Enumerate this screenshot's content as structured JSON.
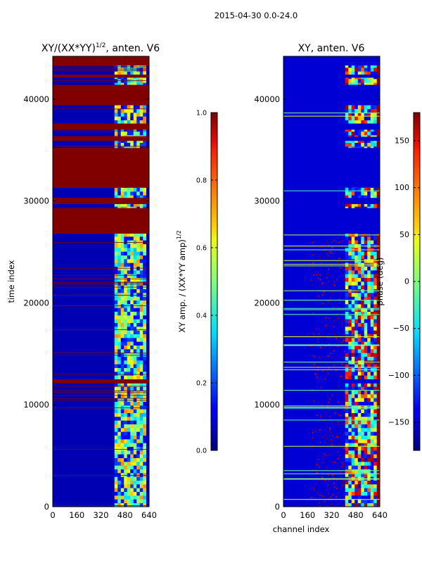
{
  "figure": {
    "suptitle": "2015-04-30 0.0-24.0",
    "shared_xlabel": "channel index"
  },
  "chart_data": [
    {
      "type": "heatmap",
      "title_main": "XY/(XX*YY)",
      "title_exp": "1/2",
      "title_tail": ", anten. V6",
      "xlabel": "",
      "ylabel": "time index",
      "xlim": [
        0,
        640
      ],
      "ylim": [
        0,
        44200
      ],
      "xticks": [
        "0",
        "160",
        "320",
        "480",
        "640"
      ],
      "xtick_values": [
        0,
        160,
        320,
        480,
        640
      ],
      "yticks": [
        "0",
        "10000",
        "20000",
        "30000",
        "40000"
      ],
      "ytick_values": [
        0,
        10000,
        20000,
        30000,
        40000
      ],
      "colormap": "jet",
      "colorbar": {
        "label_main": "XY amp. / (XX*YY amp)",
        "label_exp": "1/2",
        "min": 0.0,
        "max": 1.0,
        "ticks": [
          "0.0",
          "0.2",
          "0.4",
          "0.6",
          "0.8",
          "1.0"
        ],
        "tick_values": [
          0.0,
          0.2,
          0.4,
          0.6,
          0.8,
          1.0
        ]
      },
      "flagged_time_ranges": [
        [
          12100,
          12500
        ],
        [
          26800,
          29300
        ],
        [
          29700,
          30300
        ],
        [
          31300,
          35200
        ],
        [
          35900,
          36300
        ],
        [
          37000,
          37600
        ],
        [
          39400,
          41400
        ],
        [
          42100,
          42400
        ],
        [
          43300,
          44200
        ]
      ],
      "bright_channel_range": [
        410,
        620
      ],
      "background_value": 0.05,
      "bright_value_range": [
        0.3,
        0.75
      ]
    },
    {
      "type": "heatmap",
      "title": "XY, anten. V6",
      "xlabel": "",
      "ylabel": "",
      "xlim": [
        0,
        640
      ],
      "ylim": [
        0,
        44200
      ],
      "xticks": [
        "0",
        "160",
        "320",
        "480",
        "640"
      ],
      "xtick_values": [
        0,
        160,
        320,
        480,
        640
      ],
      "yticks": [
        "0",
        "10000",
        "20000",
        "30000",
        "40000"
      ],
      "ytick_values": [
        0,
        10000,
        20000,
        30000,
        40000
      ],
      "colormap": "jet",
      "colorbar": {
        "label": "phase (deg)",
        "min": -180,
        "max": 180,
        "ticks": [
          "−150",
          "−100",
          "−50",
          "0",
          "50",
          "100",
          "150"
        ],
        "tick_values": [
          -150,
          -100,
          -50,
          0,
          50,
          100,
          150
        ]
      },
      "flagged_time_ranges": [
        [
          12100,
          12500
        ],
        [
          26800,
          29300
        ],
        [
          29700,
          30300
        ],
        [
          31300,
          35200
        ],
        [
          35900,
          36300
        ],
        [
          37000,
          37600
        ],
        [
          39400,
          41400
        ],
        [
          42100,
          42400
        ],
        [
          43300,
          44200
        ]
      ],
      "bright_channel_range": [
        410,
        620
      ],
      "background_value": -150,
      "edge_channel_range": [
        620,
        640
      ]
    }
  ],
  "colors": {
    "flagged": "#800000",
    "background_low": "#00008f",
    "frame": "#000000"
  }
}
